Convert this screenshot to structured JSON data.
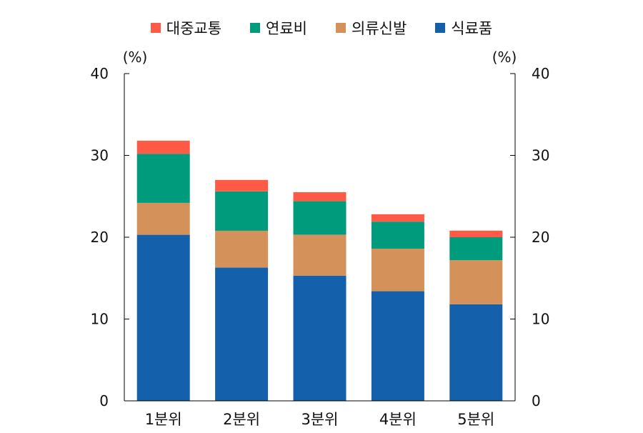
{
  "chart_data": {
    "type": "bar",
    "stacked": true,
    "categories": [
      "1분위",
      "2분위",
      "3분위",
      "4분위",
      "5분위"
    ],
    "series": [
      {
        "name": "식료품",
        "color": "#1560AB",
        "values": [
          20.3,
          16.3,
          15.3,
          13.4,
          11.8
        ]
      },
      {
        "name": "의류신발",
        "color": "#D4925A",
        "values": [
          3.9,
          4.5,
          5.0,
          5.2,
          5.4
        ]
      },
      {
        "name": "연료비",
        "color": "#009B7D",
        "values": [
          6.0,
          4.8,
          4.1,
          3.3,
          2.8
        ]
      },
      {
        "name": "대중교통",
        "color": "#FF5A45",
        "values": [
          1.6,
          1.4,
          1.1,
          0.9,
          0.8
        ]
      }
    ],
    "legend_order": [
      "대중교통",
      "연료비",
      "의류신발",
      "식료품"
    ],
    "legend_position": "top-center",
    "ylim": [
      0,
      40
    ],
    "yticks": [
      "0",
      "10",
      "20",
      "30",
      "40"
    ],
    "yticks_right": [
      "0",
      "10",
      "20",
      "30",
      "40"
    ],
    "ylabel_left": "(%)",
    "ylabel_right": "(%)",
    "grid": false
  }
}
